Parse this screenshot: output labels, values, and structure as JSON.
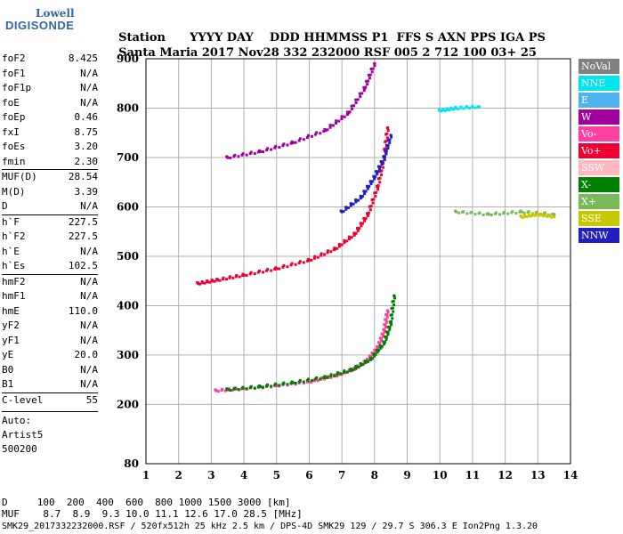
{
  "logo": {
    "brand": "Lowell",
    "product": "DIGISONDE"
  },
  "header": {
    "labels": [
      "Station",
      "YYYY",
      "DAY",
      "DDD",
      "HHMMSS",
      "P1",
      "FFS",
      "S",
      "AXN",
      "PPS",
      "IGA",
      "PS"
    ],
    "values": [
      "Santa Maria",
      "2017",
      "Nov28",
      "332",
      "232000",
      "RSF",
      "005",
      "2",
      "712",
      "100",
      "03+",
      "25"
    ]
  },
  "params": [
    {
      "label": "foF2",
      "value": "8.425"
    },
    {
      "label": "foF1",
      "value": "N/A"
    },
    {
      "label": "foF1p",
      "value": "N/A"
    },
    {
      "label": "foE",
      "value": "N/A"
    },
    {
      "label": "foEp",
      "value": "0.46"
    },
    {
      "label": "fxI",
      "value": "8.75"
    },
    {
      "label": "foEs",
      "value": "3.20"
    },
    {
      "label": "fmin",
      "value": "2.30"
    },
    {
      "label": "MUF(D)",
      "value": "28.54",
      "sep": true
    },
    {
      "label": "M(D)",
      "value": "3.39"
    },
    {
      "label": "D",
      "value": "N/A"
    },
    {
      "label": "h`F",
      "value": "227.5",
      "sep": true
    },
    {
      "label": "h`F2",
      "value": "227.5"
    },
    {
      "label": "h`E",
      "value": "N/A"
    },
    {
      "label": "h`Es",
      "value": "102.5"
    },
    {
      "label": "hmF2",
      "value": "N/A",
      "sep": true
    },
    {
      "label": "hmF1",
      "value": "N/A"
    },
    {
      "label": "hmE",
      "value": "110.0"
    },
    {
      "label": "yF2",
      "value": "N/A"
    },
    {
      "label": "yF1",
      "value": "N/A"
    },
    {
      "label": "yE",
      "value": "20.0"
    },
    {
      "label": "B0",
      "value": "N/A"
    },
    {
      "label": "B1",
      "value": "N/A"
    },
    {
      "label": "C-level",
      "value": "55",
      "sep": true
    }
  ],
  "auto": [
    "Auto:",
    "Artist5",
    "500200"
  ],
  "legend": [
    {
      "label": "NoVal",
      "color": "#808080"
    },
    {
      "label": "NNE",
      "color": "#00e5ee"
    },
    {
      "label": "E",
      "color": "#4fb3f0"
    },
    {
      "label": "W",
      "color": "#a000a0"
    },
    {
      "label": "Vo-",
      "color": "#ff40a0"
    },
    {
      "label": "Vo+",
      "color": "#ee0033"
    },
    {
      "label": "SSW",
      "color": "#ffb6c1"
    },
    {
      "label": "X-",
      "color": "#008000"
    },
    {
      "label": "X+",
      "color": "#7ab85a"
    },
    {
      "label": "SSE",
      "color": "#c8c800"
    },
    {
      "label": "NNW",
      "color": "#2020c0"
    }
  ],
  "footer": {
    "distance_row": "D     100  200  400  600  800 1000 1500 3000 [km]",
    "muf_row": "MUF    8.7  8.9  9.3 10.0 11.1 12.6 17.0 28.5 [MHz]",
    "info": "SMK29_2017332232000.RSF / 520fx512h 25 kHz 2.5 km / DPS-4D SMK29 129 / 29.7 S 306.3 E Ion2Png 1.3.20"
  },
  "chart_data": {
    "type": "scatter",
    "title": "",
    "xlabel": "",
    "ylabel": "",
    "xlim": [
      1,
      14
    ],
    "ylim": [
      80,
      900
    ],
    "x_ticks": [
      1,
      2,
      3,
      4,
      5,
      6,
      7,
      8,
      9,
      10,
      11,
      12,
      13,
      14
    ],
    "y_ticks": [
      80,
      200,
      300,
      400,
      500,
      600,
      700,
      800,
      900
    ],
    "grid": true,
    "series": [
      {
        "name": "Vo-",
        "color": "#ff40a0",
        "points": [
          [
            3.15,
            228
          ],
          [
            4.0,
            232
          ],
          [
            5.0,
            238
          ],
          [
            6.0,
            246
          ],
          [
            6.8,
            258
          ],
          [
            7.4,
            272
          ],
          [
            7.8,
            290
          ],
          [
            8.1,
            315
          ],
          [
            8.3,
            350
          ],
          [
            8.4,
            390
          ]
        ]
      },
      {
        "name": "Vo+",
        "color": "#ee0033",
        "points": [
          [
            2.6,
            445
          ],
          [
            3.2,
            452
          ],
          [
            4.0,
            462
          ],
          [
            5.0,
            475
          ],
          [
            6.0,
            492
          ],
          [
            6.8,
            515
          ],
          [
            7.4,
            545
          ],
          [
            7.8,
            585
          ],
          [
            8.1,
            640
          ],
          [
            8.3,
            700
          ],
          [
            8.4,
            760
          ]
        ]
      },
      {
        "name": "X-",
        "color": "#008000",
        "points": [
          [
            3.5,
            230
          ],
          [
            4.5,
            236
          ],
          [
            5.5,
            244
          ],
          [
            6.5,
            255
          ],
          [
            7.3,
            270
          ],
          [
            7.9,
            292
          ],
          [
            8.3,
            325
          ],
          [
            8.5,
            365
          ],
          [
            8.6,
            420
          ]
        ]
      },
      {
        "name": "X+",
        "color": "#7ab85a",
        "points": [
          [
            10.5,
            590
          ],
          [
            11.5,
            585
          ],
          [
            12.5,
            590
          ],
          [
            13.5,
            585
          ]
        ]
      },
      {
        "name": "W",
        "color": "#a000a0",
        "points": [
          [
            3.5,
            700
          ],
          [
            4.5,
            712
          ],
          [
            5.5,
            730
          ],
          [
            6.5,
            755
          ],
          [
            7.2,
            790
          ],
          [
            7.7,
            840
          ],
          [
            8.0,
            890
          ]
        ]
      },
      {
        "name": "NNW",
        "color": "#2020c0",
        "points": [
          [
            7.0,
            590
          ],
          [
            7.6,
            620
          ],
          [
            8.0,
            660
          ],
          [
            8.3,
            700
          ],
          [
            8.5,
            745
          ]
        ]
      },
      {
        "name": "NNE",
        "color": "#00e5ee",
        "points": [
          [
            10.0,
            795
          ],
          [
            10.5,
            800
          ],
          [
            11.2,
            803
          ]
        ]
      },
      {
        "name": "SSE",
        "color": "#c8c800",
        "points": [
          [
            12.5,
            580
          ],
          [
            13.0,
            585
          ],
          [
            13.5,
            580
          ]
        ]
      }
    ]
  }
}
